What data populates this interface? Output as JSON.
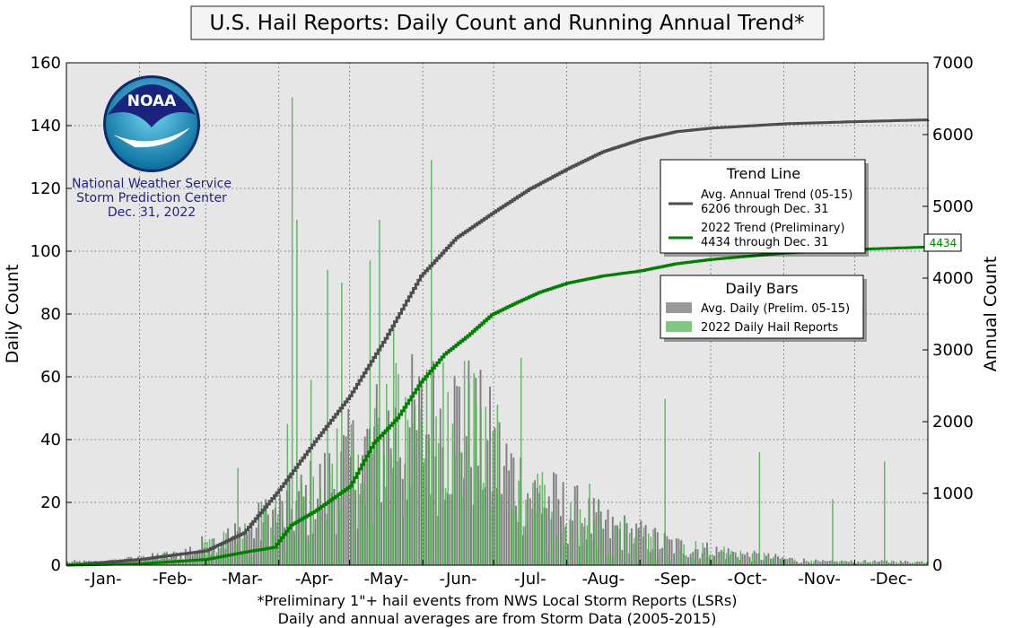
{
  "title": "U.S. Hail Reports: Daily Count and Running Annual Trend*",
  "footnote_line1": "*Preliminary 1\"+ hail events from NWS Local Storm Reports (LSRs)",
  "footnote_line2": "Daily and annual averages are from Storm Data (2005-2015)",
  "logo": {
    "badge_text": "NOAA",
    "line1": "National Weather Service",
    "line2": "Storm Prediction Center",
    "line3": "Dec. 31, 2022"
  },
  "legend_trend": {
    "title": "Trend Line",
    "avg_line1": "Avg. Annual Trend (05-15)",
    "avg_line2": "6206 through Dec. 31",
    "cur_line1": "2022 Trend (Preliminary)",
    "cur_line2": "4434 through Dec. 31"
  },
  "legend_bars": {
    "title": "Daily Bars",
    "avg_label": "Avg. Daily (Prelim. 05-15)",
    "cur_label": "2022 Daily Hail Reports"
  },
  "end_label": "4434",
  "colors": {
    "plot_bg": "#e6e6e6",
    "avg_bar": "#7f7f7f",
    "cur_bar": "#4caf50",
    "avg_line": "#4d4d4d",
    "cur_line": "#008000",
    "logo_text": "#23237a"
  },
  "chart_data": {
    "type": "bar",
    "xlabel": "",
    "ylabel": "Daily Count",
    "y2label": "Annual Count",
    "ylim": [
      0,
      160
    ],
    "y2lim": [
      0,
      7000
    ],
    "yticks": [
      "0",
      "20",
      "40",
      "60",
      "80",
      "100",
      "120",
      "140",
      "160"
    ],
    "y2ticks": [
      "0",
      "1000",
      "2000",
      "3000",
      "4000",
      "5000",
      "6000",
      "7000"
    ],
    "month_labels": [
      "-Jan-",
      "-Feb-",
      "-Mar-",
      "-Apr-",
      "-May-",
      "-Jun-",
      "-Jul-",
      "-Aug-",
      "-Sep-",
      "-Oct-",
      "-Nov-",
      "-Dec-"
    ],
    "grid": true,
    "avg_daily_monthly_mean": [
      1,
      3,
      10,
      22,
      40,
      45,
      22,
      12,
      6,
      3,
      1,
      1
    ],
    "current_daily_peaks": [
      {
        "day": 72,
        "value": 31
      },
      {
        "day": 93,
        "value": 45
      },
      {
        "day": 95,
        "value": 149
      },
      {
        "day": 97,
        "value": 110
      },
      {
        "day": 103,
        "value": 59
      },
      {
        "day": 110,
        "value": 94
      },
      {
        "day": 116,
        "value": 90
      },
      {
        "day": 128,
        "value": 97
      },
      {
        "day": 132,
        "value": 110
      },
      {
        "day": 138,
        "value": 78
      },
      {
        "day": 154,
        "value": 129
      },
      {
        "day": 175,
        "value": 50
      },
      {
        "day": 192,
        "value": 66
      },
      {
        "day": 221,
        "value": 26
      },
      {
        "day": 253,
        "value": 53
      },
      {
        "day": 293,
        "value": 36
      },
      {
        "day": 324,
        "value": 21
      },
      {
        "day": 346,
        "value": 33
      }
    ],
    "series": [
      {
        "name": "Avg. Annual Trend (05-15)",
        "x": [
          0,
          31,
          59,
          75,
          90,
          105,
          120,
          135,
          150,
          165,
          181,
          196,
          212,
          227,
          243,
          258,
          273,
          304,
          334,
          365
        ],
        "values": [
          0,
          80,
          200,
          450,
          1050,
          1720,
          2360,
          3160,
          4030,
          4560,
          4920,
          5240,
          5520,
          5760,
          5930,
          6040,
          6090,
          6150,
          6180,
          6206
        ]
      },
      {
        "name": "2022 Trend (Preliminary)",
        "x": [
          0,
          31,
          59,
          75,
          88,
          95,
          105,
          120,
          130,
          140,
          150,
          160,
          170,
          180,
          190,
          200,
          212,
          227,
          243,
          258,
          273,
          304,
          334,
          365
        ],
        "values": [
          0,
          20,
          80,
          180,
          250,
          560,
          750,
          1100,
          1700,
          2050,
          2550,
          2940,
          3200,
          3490,
          3650,
          3800,
          3930,
          4030,
          4100,
          4200,
          4260,
          4350,
          4400,
          4434
        ]
      }
    ]
  }
}
